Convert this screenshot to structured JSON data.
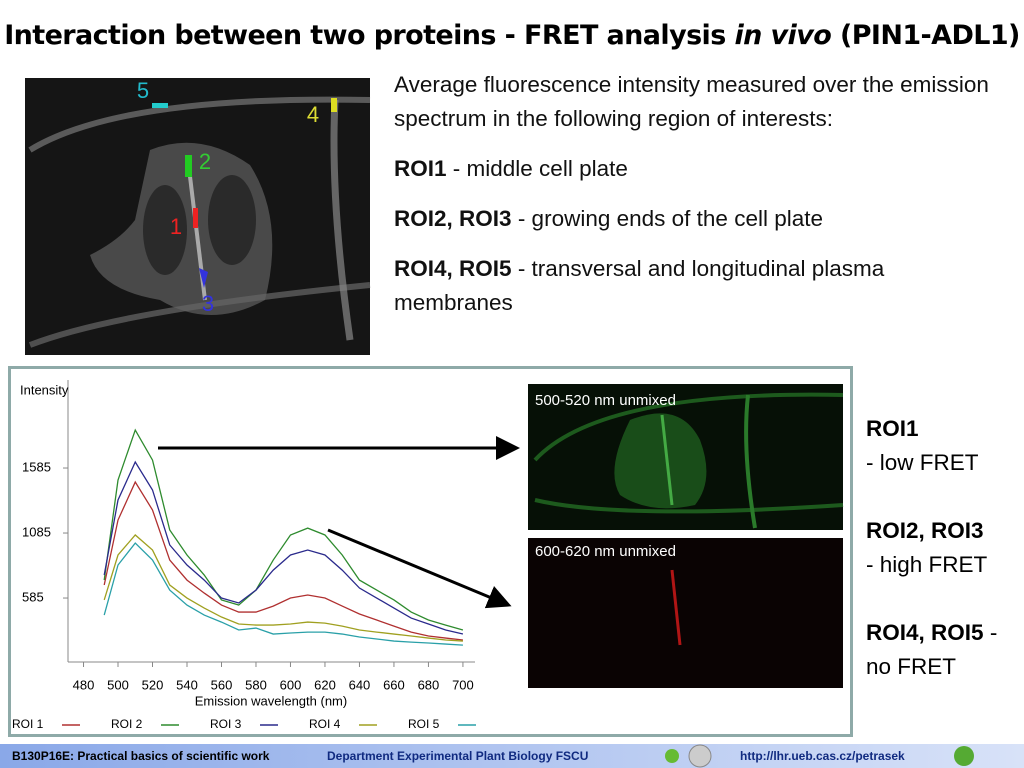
{
  "title": {
    "parts": [
      "Interaction between two proteins - FRET analysis",
      "in vivo",
      "(PIN1-ADL1)"
    ]
  },
  "micrograph": {
    "roi_labels": [
      "5",
      "4",
      "2",
      "1",
      "3"
    ]
  },
  "description": {
    "intro": "Average fluorescence intensity measured over the emission spectrum in the following region of interests:",
    "items": [
      {
        "label": "ROI1",
        "text": "- middle cell plate"
      },
      {
        "label": "ROI2, ROI3",
        "text": "- growing ends of the cell plate"
      },
      {
        "label": "ROI4, ROI5",
        "text": "- transversal and longitudinal plasma membranes"
      }
    ]
  },
  "chart_data": {
    "type": "line",
    "x_label": "Emission wavelength (nm)",
    "y_label": "Intensity",
    "x": [
      492,
      500,
      510,
      520,
      530,
      540,
      550,
      560,
      570,
      580,
      590,
      600,
      610,
      620,
      630,
      640,
      650,
      660,
      670,
      680,
      690,
      700
    ],
    "xlim": [
      471,
      707
    ],
    "xticks": [
      480,
      500,
      520,
      540,
      560,
      580,
      600,
      620,
      640,
      660,
      680,
      700
    ],
    "ylim": [
      93,
      2262
    ],
    "yticks": [
      585,
      1085,
      1585
    ],
    "series": [
      {
        "name": "ROI 1",
        "color": "#b03030",
        "values": [
          685,
          1185,
          1477,
          1262,
          877,
          723,
          623,
          531,
          477,
          477,
          523,
          585,
          608,
          585,
          523,
          462,
          416,
          369,
          323,
          293,
          277,
          262
        ]
      },
      {
        "name": "ROI 2",
        "color": "#2e8b2e",
        "values": [
          723,
          1493,
          1877,
          1646,
          1108,
          916,
          762,
          570,
          531,
          646,
          877,
          1070,
          1123,
          1070,
          916,
          723,
          646,
          570,
          477,
          416,
          377,
          339
        ]
      },
      {
        "name": "ROI 3",
        "color": "#2a2a8c",
        "values": [
          762,
          1339,
          1631,
          1416,
          993,
          839,
          723,
          585,
          547,
          646,
          800,
          916,
          954,
          916,
          800,
          662,
          585,
          508,
          431,
          385,
          339,
          308
        ]
      },
      {
        "name": "ROI 4",
        "color": "#a0a020",
        "values": [
          570,
          916,
          1070,
          954,
          685,
          585,
          508,
          439,
          385,
          377,
          377,
          385,
          400,
          392,
          369,
          339,
          323,
          308,
          293,
          277,
          262,
          254
        ]
      },
      {
        "name": "ROI 5",
        "color": "#2aa0a8",
        "values": [
          454,
          839,
          1008,
          877,
          646,
          531,
          454,
          400,
          339,
          354,
          308,
          316,
          323,
          323,
          308,
          285,
          270,
          254,
          246,
          239,
          231,
          223
        ]
      }
    ]
  },
  "unmixed_images": [
    "500-520 nm unmixed",
    "600-620 nm unmixed"
  ],
  "conclusions": [
    {
      "label": "ROI1",
      "text": "- low FRET"
    },
    {
      "label": "ROI2, ROI3",
      "text": "- high FRET"
    },
    {
      "label": "ROI4, ROI5",
      "text": "- no FRET"
    }
  ],
  "footer": {
    "course": "B130P16E: Practical basics of scientific work",
    "department": "Department  Experimental Plant Biology  FSCU",
    "url": "http://lhr.ueb.cas.cz/petrasek"
  }
}
